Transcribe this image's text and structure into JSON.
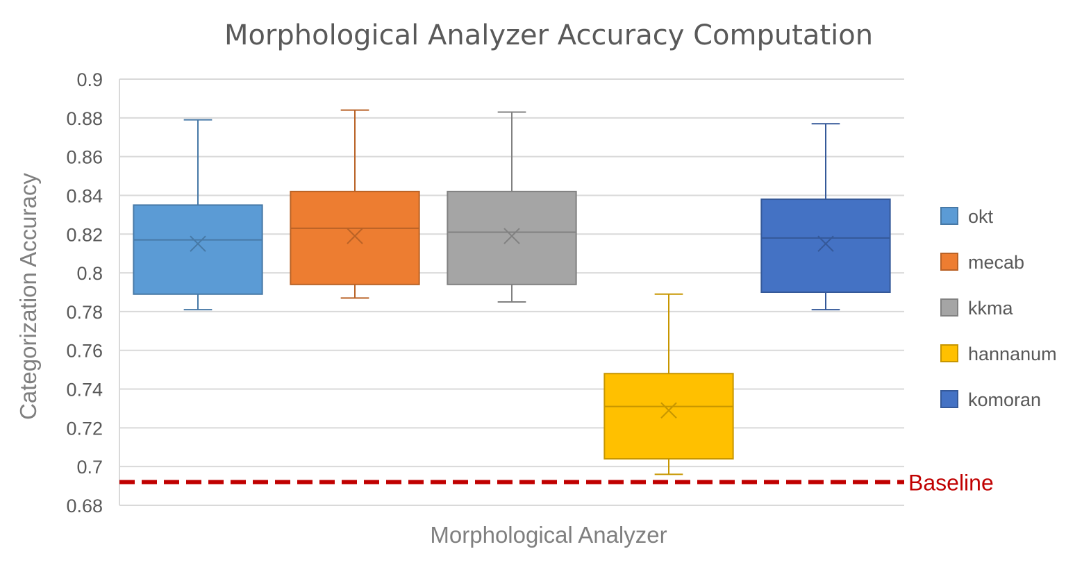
{
  "chart_data": {
    "type": "box",
    "title": "Morphological Analyzer Accuracy Computation",
    "xlabel": "Morphological Analyzer",
    "ylabel": "Categorization Accuracy",
    "ylim": [
      0.68,
      0.9
    ],
    "yticks": [
      "0.9",
      "0.88",
      "0.86",
      "0.84",
      "0.82",
      "0.8",
      "0.78",
      "0.76",
      "0.74",
      "0.72",
      "0.7",
      "0.68"
    ],
    "grid": true,
    "legend_position": "right",
    "series": [
      {
        "name": "okt",
        "color": "#5b9bd5",
        "min": 0.781,
        "q1": 0.789,
        "median": 0.817,
        "mean": 0.815,
        "q3": 0.835,
        "max": 0.879
      },
      {
        "name": "mecab",
        "color": "#ed7d31",
        "min": 0.787,
        "q1": 0.794,
        "median": 0.823,
        "mean": 0.819,
        "q3": 0.842,
        "max": 0.884
      },
      {
        "name": "kkma",
        "color": "#a5a5a5",
        "min": 0.785,
        "q1": 0.794,
        "median": 0.821,
        "mean": 0.819,
        "q3": 0.842,
        "max": 0.883
      },
      {
        "name": "hannanum",
        "color": "#ffc000",
        "min": 0.696,
        "q1": 0.704,
        "median": 0.731,
        "mean": 0.729,
        "q3": 0.748,
        "max": 0.789
      },
      {
        "name": "komoran",
        "color": "#4472c4",
        "min": 0.781,
        "q1": 0.79,
        "median": 0.818,
        "mean": 0.815,
        "q3": 0.838,
        "max": 0.877
      }
    ],
    "baseline": {
      "label": "Baseline",
      "value": 0.692,
      "color": "#c00000"
    }
  }
}
